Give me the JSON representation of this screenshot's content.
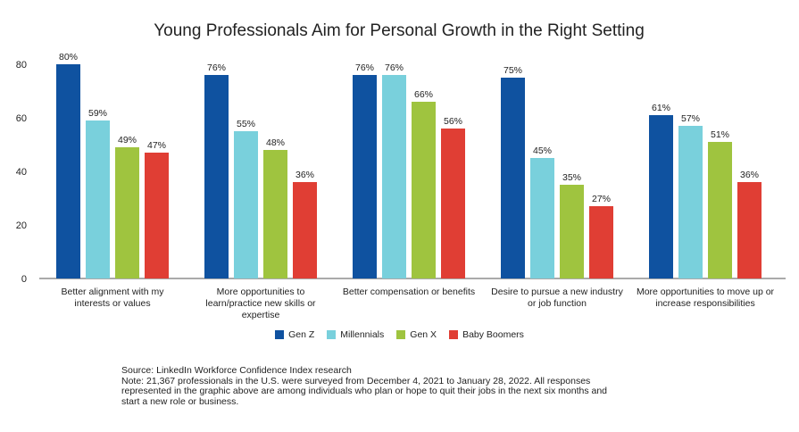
{
  "chart_data": {
    "type": "bar",
    "title": "Young Professionals Aim for Personal Growth in the Right Setting",
    "xlabel": "",
    "ylabel": "",
    "ylim": [
      0,
      80
    ],
    "yticks": [
      "0",
      "20",
      "40",
      "60",
      "80"
    ],
    "grid": false,
    "legend_position": "bottom",
    "categories": [
      [
        "Better alignment with my",
        "interests or values"
      ],
      [
        "More opportunities to",
        "learn/practice new skills or",
        "expertise"
      ],
      [
        "Better compensation or benefits"
      ],
      [
        "Desire to pursue a new industry",
        "or job function"
      ],
      [
        "More opportunities to move up or",
        "increase responsibilities"
      ]
    ],
    "series": [
      {
        "name": "Gen Z",
        "color": "#0f52a0",
        "values": [
          80,
          76,
          76,
          75,
          61
        ],
        "labels": [
          "80%",
          "76%",
          "76%",
          "75%",
          "61%"
        ]
      },
      {
        "name": "Millennials",
        "color": "#79d0dc",
        "values": [
          59,
          55,
          76,
          45,
          57
        ],
        "labels": [
          "59%",
          "55%",
          "76%",
          "45%",
          "57%"
        ]
      },
      {
        "name": "Gen X",
        "color": "#9fc43f",
        "values": [
          49,
          48,
          66,
          35,
          51
        ],
        "labels": [
          "49%",
          "48%",
          "66%",
          "35%",
          "51%"
        ]
      },
      {
        "name": "Baby Boomers",
        "color": "#e03e34",
        "values": [
          47,
          36,
          56,
          27,
          36
        ],
        "labels": [
          "47%",
          "36%",
          "56%",
          "27%",
          "36%"
        ]
      }
    ]
  },
  "footer": {
    "source": "Source: LinkedIn Workforce Confidence Index research",
    "note_lines": [
      "Note: 21,367 professionals in the U.S. were surveyed from December 4, 2021 to January 28, 2022. All responses",
      "represented in the graphic above are among individuals who plan or hope to quit their jobs in the next six months and",
      "start a new role or business."
    ]
  }
}
